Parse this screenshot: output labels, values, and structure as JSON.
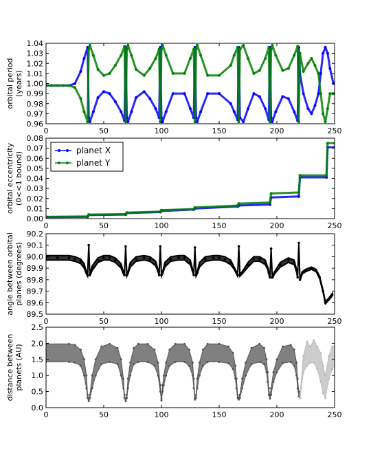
{
  "chart_data": [
    {
      "type": "line",
      "ylabel": [
        "orbital period",
        "(years)"
      ],
      "xlim": [
        0,
        250
      ],
      "ylim": [
        0.96,
        1.04
      ],
      "x_ticks": [
        "0",
        "50",
        "100",
        "150",
        "200",
        "250"
      ],
      "y_ticks": [
        "0.96",
        "0.97",
        "0.98",
        "0.99",
        "1.00",
        "1.01",
        "1.02",
        "1.03",
        "1.04"
      ],
      "series": [
        {
          "color": "#0000ff",
          "x": [
            0,
            5,
            10,
            15,
            20,
            25,
            30,
            33,
            36,
            37,
            38,
            41,
            45,
            50,
            55,
            60,
            65,
            68,
            69,
            70,
            71,
            74,
            78,
            85,
            90,
            95,
            98,
            99,
            100,
            101,
            104,
            110,
            120,
            125,
            128,
            129,
            130,
            131,
            134,
            140,
            150,
            160,
            163,
            166,
            167,
            168,
            171,
            175,
            180,
            185,
            190,
            193,
            194,
            195,
            196,
            199,
            205,
            210,
            215,
            218,
            219,
            220,
            223,
            227,
            230,
            233,
            236,
            238,
            240,
            242,
            244,
            246,
            249
          ],
          "y": [
            0.998,
            0.998,
            0.998,
            0.998,
            0.998,
            1.0,
            1.012,
            1.025,
            1.036,
            0.966,
            0.962,
            0.972,
            0.986,
            0.992,
            0.99,
            0.982,
            0.972,
            0.963,
            1.036,
            0.966,
            0.962,
            0.972,
            0.986,
            0.992,
            0.985,
            0.975,
            0.966,
            1.036,
            0.966,
            0.962,
            0.972,
            0.99,
            0.99,
            0.975,
            0.966,
            1.036,
            0.966,
            0.962,
            0.972,
            0.99,
            0.99,
            0.98,
            0.972,
            0.964,
            1.036,
            0.966,
            0.962,
            0.975,
            0.99,
            0.987,
            0.975,
            0.964,
            1.036,
            0.966,
            0.962,
            0.972,
            0.987,
            0.985,
            0.972,
            0.963,
            1.036,
            1.01,
            0.99,
            0.975,
            0.97,
            0.978,
            0.99,
            1.01,
            1.03,
            1.036,
            1.03,
            1.015,
            1.0
          ]
        },
        {
          "color": "#008000",
          "x": [
            0,
            5,
            10,
            15,
            20,
            25,
            30,
            33,
            36,
            37,
            38,
            41,
            45,
            50,
            55,
            60,
            65,
            68,
            69,
            70,
            71,
            74,
            78,
            85,
            90,
            95,
            98,
            99,
            100,
            101,
            104,
            110,
            120,
            125,
            128,
            129,
            130,
            131,
            134,
            140,
            150,
            160,
            163,
            166,
            167,
            168,
            171,
            175,
            180,
            185,
            190,
            193,
            194,
            195,
            196,
            199,
            205,
            210,
            215,
            218,
            219,
            220,
            223,
            227,
            230,
            233,
            236,
            238,
            240,
            242,
            244,
            246,
            249
          ],
          "y": [
            0.998,
            0.998,
            0.998,
            0.998,
            0.998,
            0.996,
            0.985,
            0.972,
            0.962,
            1.034,
            1.038,
            1.028,
            1.014,
            1.008,
            1.01,
            1.018,
            1.028,
            1.037,
            0.962,
            1.034,
            1.038,
            1.028,
            1.014,
            1.008,
            1.015,
            1.025,
            1.034,
            0.962,
            1.034,
            1.038,
            1.028,
            1.01,
            1.01,
            1.025,
            1.034,
            0.962,
            1.034,
            1.038,
            1.028,
            1.008,
            1.008,
            1.018,
            1.028,
            1.036,
            0.962,
            1.034,
            1.038,
            1.025,
            1.01,
            1.013,
            1.025,
            1.036,
            0.962,
            1.034,
            1.038,
            1.028,
            1.013,
            1.015,
            1.028,
            1.037,
            0.962,
            1.03,
            1.012,
            1.02,
            1.025,
            1.018,
            1.01,
            0.99,
            0.97,
            0.962,
            0.975,
            0.99,
            0.99
          ]
        }
      ]
    },
    {
      "type": "line",
      "ylabel": [
        "orbital eccentricity",
        "(0<<1 bound)"
      ],
      "xlim": [
        0,
        250
      ],
      "ylim": [
        0.0,
        0.08
      ],
      "x_ticks": [
        "0",
        "50",
        "100",
        "150",
        "200",
        "250"
      ],
      "y_ticks": [
        "0.00",
        "0.01",
        "0.02",
        "0.03",
        "0.04",
        "0.05",
        "0.06",
        "0.07",
        "0.08"
      ],
      "legend": {
        "position": "upper-left",
        "entries": [
          "planet X",
          "planet Y"
        ]
      },
      "series": [
        {
          "name": "planet X",
          "color": "#0000ff",
          "x": [
            0,
            36,
            37,
            69,
            70,
            99,
            100,
            128,
            129,
            166,
            167,
            194,
            195,
            219,
            220,
            243,
            244,
            250
          ],
          "y": [
            0.0015,
            0.0018,
            0.0035,
            0.004,
            0.0055,
            0.0065,
            0.0075,
            0.009,
            0.01,
            0.012,
            0.013,
            0.014,
            0.021,
            0.022,
            0.041,
            0.041,
            0.071,
            0.071
          ]
        },
        {
          "name": "planet Y",
          "color": "#008000",
          "x": [
            0,
            36,
            37,
            69,
            70,
            99,
            100,
            128,
            129,
            166,
            167,
            194,
            195,
            219,
            220,
            243,
            244,
            250
          ],
          "y": [
            0.0018,
            0.0022,
            0.004,
            0.0045,
            0.006,
            0.007,
            0.0085,
            0.0095,
            0.011,
            0.013,
            0.015,
            0.016,
            0.025,
            0.026,
            0.043,
            0.043,
            0.075,
            0.075
          ]
        }
      ]
    },
    {
      "type": "line",
      "ylabel": [
        "angle between orbital",
        "planes (degrees)"
      ],
      "xlim": [
        0,
        250
      ],
      "ylim": [
        89.5,
        90.2
      ],
      "x_ticks": [
        "0",
        "50",
        "100",
        "150",
        "200",
        "250"
      ],
      "y_ticks": [
        "89.5",
        "89.6",
        "89.7",
        "89.8",
        "89.9",
        "90.0",
        "90.1",
        "90.2"
      ],
      "series": [
        {
          "color": "#000000",
          "band": true,
          "x": [
            0,
            10,
            20,
            25,
            30,
            33,
            35,
            36,
            37,
            38,
            40,
            45,
            50,
            55,
            60,
            65,
            67,
            68,
            69,
            70,
            71,
            73,
            78,
            85,
            90,
            95,
            97,
            98,
            99,
            100,
            101,
            103,
            108,
            115,
            120,
            125,
            127,
            128,
            129,
            130,
            131,
            133,
            138,
            145,
            150,
            155,
            160,
            163,
            165,
            166,
            167,
            168,
            170,
            175,
            180,
            185,
            190,
            192,
            193,
            194,
            195,
            196,
            198,
            203,
            210,
            215,
            217,
            218,
            219,
            220,
            222,
            225,
            230,
            234,
            237,
            240,
            242,
            245,
            248
          ],
          "y": [
            89.99,
            89.99,
            89.99,
            89.98,
            89.96,
            89.92,
            89.86,
            89.84,
            90.1,
            89.84,
            89.9,
            89.97,
            89.99,
            89.99,
            89.97,
            89.92,
            89.86,
            89.84,
            90.09,
            89.84,
            89.86,
            89.93,
            89.98,
            89.99,
            89.98,
            89.94,
            89.88,
            89.84,
            90.09,
            89.84,
            89.86,
            89.93,
            89.98,
            89.99,
            89.99,
            89.95,
            89.88,
            89.84,
            90.08,
            89.84,
            89.86,
            89.93,
            89.98,
            89.99,
            89.99,
            89.98,
            89.95,
            89.9,
            89.86,
            89.84,
            90.09,
            89.84,
            89.86,
            89.93,
            89.98,
            89.98,
            89.95,
            89.9,
            89.86,
            89.82,
            90.07,
            89.82,
            89.86,
            89.93,
            89.97,
            89.95,
            89.88,
            89.82,
            90.12,
            89.8,
            89.86,
            89.88,
            89.9,
            89.88,
            89.82,
            89.7,
            89.6,
            89.63,
            89.67
          ],
          "spread": [
            0.02,
            0.02,
            0.02,
            0.02,
            0.02,
            0.02,
            0.01,
            0.01,
            0.0,
            0.01,
            0.02,
            0.02,
            0.02,
            0.02,
            0.02,
            0.02,
            0.01,
            0.01,
            0.0,
            0.01,
            0.01,
            0.02,
            0.02,
            0.02,
            0.02,
            0.02,
            0.01,
            0.01,
            0.0,
            0.01,
            0.01,
            0.02,
            0.02,
            0.02,
            0.02,
            0.02,
            0.01,
            0.01,
            0.0,
            0.01,
            0.01,
            0.02,
            0.02,
            0.02,
            0.02,
            0.02,
            0.02,
            0.01,
            0.01,
            0.01,
            0.0,
            0.01,
            0.01,
            0.02,
            0.02,
            0.02,
            0.02,
            0.01,
            0.01,
            0.01,
            0.0,
            0.01,
            0.01,
            0.02,
            0.02,
            0.02,
            0.01,
            0.01,
            0.0,
            0.01,
            0.01,
            0.01,
            0.01,
            0.01,
            0.01,
            0.01,
            0.01,
            0.01,
            0.01
          ]
        }
      ]
    },
    {
      "type": "line",
      "ylabel": [
        "distance between",
        "planets (AU)"
      ],
      "xlim": [
        0,
        250
      ],
      "ylim": [
        0.0,
        2.5
      ],
      "x_ticks": [
        "0",
        "50",
        "100",
        "150",
        "200",
        "250"
      ],
      "y_ticks": [
        "0.0",
        "0.5",
        "1.0",
        "1.5",
        "2.0",
        "2.5"
      ],
      "series": [
        {
          "color": "#555555",
          "band": true,
          "x": [
            0,
            20,
            25,
            30,
            33,
            35,
            36,
            37,
            38,
            40,
            43,
            48,
            55,
            62,
            65,
            67,
            68,
            69,
            70,
            71,
            73,
            76,
            80,
            88,
            94,
            97,
            99,
            100,
            101,
            102,
            104,
            107,
            112,
            120,
            124,
            127,
            128,
            129,
            130,
            131,
            133,
            136,
            140,
            150,
            158,
            162,
            164,
            165,
            166,
            167,
            168,
            170,
            173,
            178,
            185,
            189,
            191,
            192,
            193,
            194,
            195,
            197,
            200,
            205,
            212,
            215,
            217,
            218,
            219,
            220
          ],
          "upper": [
            1.98,
            1.98,
            1.95,
            1.8,
            1.5,
            1.0,
            0.4,
            0.25,
            0.4,
            1.0,
            1.5,
            1.9,
            1.98,
            1.85,
            1.5,
            0.9,
            0.4,
            0.25,
            0.4,
            0.9,
            1.4,
            1.85,
            1.98,
            1.98,
            1.8,
            1.4,
            0.7,
            0.28,
            0.7,
            1.0,
            1.4,
            1.8,
            1.98,
            1.98,
            1.8,
            1.4,
            0.9,
            0.3,
            0.4,
            0.9,
            1.4,
            1.8,
            1.98,
            1.98,
            1.9,
            1.7,
            1.3,
            0.9,
            0.4,
            0.3,
            0.4,
            0.9,
            1.4,
            1.85,
            1.98,
            1.85,
            1.5,
            1.1,
            0.6,
            0.35,
            0.6,
            1.1,
            1.5,
            1.9,
            1.95,
            1.8,
            1.4,
            0.9,
            0.5,
            0.4
          ],
          "lower": [
            1.42,
            1.42,
            1.4,
            1.3,
            1.0,
            0.6,
            0.3,
            0.2,
            0.3,
            0.6,
            1.0,
            1.35,
            1.42,
            1.35,
            1.0,
            0.6,
            0.3,
            0.2,
            0.3,
            0.6,
            1.0,
            1.35,
            1.42,
            1.42,
            1.3,
            1.0,
            0.5,
            0.22,
            0.5,
            0.7,
            1.0,
            1.3,
            1.42,
            1.42,
            1.3,
            1.0,
            0.6,
            0.25,
            0.3,
            0.6,
            1.0,
            1.3,
            1.42,
            1.42,
            1.38,
            1.2,
            0.9,
            0.6,
            0.3,
            0.25,
            0.3,
            0.6,
            1.0,
            1.35,
            1.42,
            1.35,
            1.1,
            0.8,
            0.4,
            0.28,
            0.4,
            0.8,
            1.1,
            1.38,
            1.42,
            1.3,
            1.0,
            0.6,
            0.35,
            0.3
          ]
        },
        {
          "color": "#bbbbbb",
          "band": true,
          "x": [
            220,
            223,
            226,
            229,
            232,
            235,
            238,
            240,
            242,
            245,
            248,
            250
          ],
          "upper": [
            0.4,
            1.6,
            2.05,
            1.9,
            2.1,
            1.9,
            1.7,
            1.3,
            1.0,
            1.6,
            1.9,
            1.9
          ],
          "lower": [
            0.3,
            1.1,
            1.3,
            1.4,
            1.4,
            1.2,
            0.8,
            0.45,
            0.3,
            0.9,
            1.2,
            1.3
          ]
        }
      ]
    }
  ]
}
